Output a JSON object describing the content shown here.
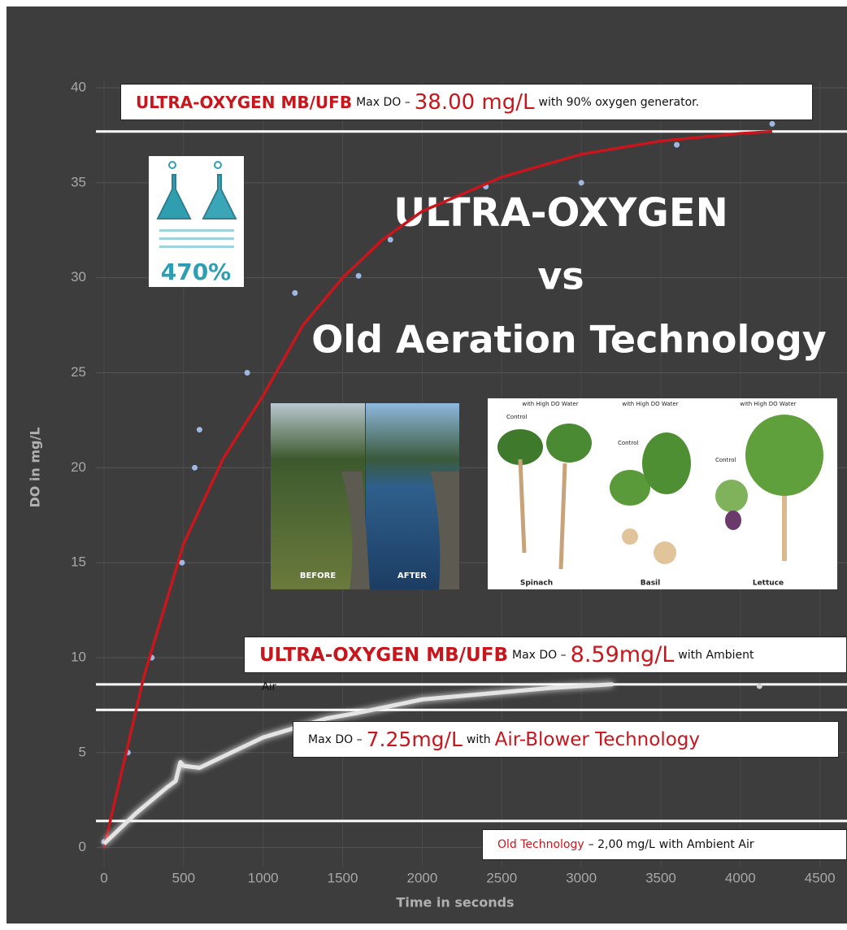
{
  "chart_data": {
    "type": "scatter",
    "xlabel": "Time in seconds",
    "ylabel": "DO in mg/L",
    "xlim": [
      0,
      4660
    ],
    "xticks": [
      0,
      500,
      1000,
      1500,
      2000,
      2500,
      3000,
      3500,
      4000,
      4500
    ],
    "ylim": [
      -1,
      40
    ],
    "yticks": [
      0,
      5,
      10,
      15,
      20,
      25,
      30,
      35,
      40
    ],
    "grid": true,
    "series": [
      {
        "type": "scatter",
        "color": "#9fb8e2",
        "x": [
          0,
          150,
          300,
          490,
          570,
          600,
          900,
          1200,
          1600,
          1800,
          2400,
          3000,
          3600,
          4200
        ],
        "values": [
          0.3,
          5,
          10,
          15,
          20,
          22,
          25,
          29.2,
          30.1,
          32,
          34.8,
          35,
          37,
          38.1
        ]
      },
      {
        "type": "line",
        "color": "#c8161d",
        "x": [
          0,
          250,
          500,
          750,
          1000,
          1250,
          1500,
          1750,
          2000,
          2500,
          3000,
          3500,
          4000,
          4200
        ],
        "values": [
          0,
          9,
          16,
          20.5,
          23.8,
          27.5,
          30,
          32,
          33.5,
          35.3,
          36.5,
          37.2,
          37.6,
          37.7
        ]
      },
      {
        "type": "line",
        "color": "#e4e4e4",
        "x": [
          0,
          100,
          200,
          300,
          400,
          450,
          480,
          500,
          600,
          800,
          1000,
          1200,
          1400,
          1600,
          2000,
          2400,
          2800,
          3200
        ],
        "values": [
          0.2,
          1,
          1.8,
          2.5,
          3.2,
          3.5,
          4.5,
          4.3,
          4.2,
          5,
          5.8,
          6.3,
          6.8,
          7.1,
          7.8,
          8.1,
          8.4,
          8.6
        ]
      },
      {
        "type": "scatter",
        "color": "#d0d0d0",
        "x": [
          4120
        ],
        "values": [
          8.5
        ]
      }
    ],
    "hlines": [
      37.7,
      8.59,
      7.25,
      1.4
    ],
    "hline_color": "#ffffff",
    "annotations": [
      {
        "segments": [
          {
            "text": "ULTRA-OXYGEN MB/UFB",
            "color": "#c8161d"
          },
          {
            "text": "Max DO –",
            "color": "#111111"
          },
          {
            "text": "38.00 mg/L",
            "color": "#c8161d"
          },
          {
            "text": "with 90% oxygen generator.",
            "color": "#111111"
          }
        ]
      },
      {
        "segments": [
          {
            "text": "ULTRA-OXYGEN MB/UFB",
            "color": "#c8161d"
          },
          {
            "text": "Max DO –",
            "color": "#111111"
          },
          {
            "text": "8.59mg/L",
            "color": "#c8161d"
          },
          {
            "text": "with Ambient",
            "color": "#111111"
          }
        ],
        "overflow": "Air"
      },
      {
        "segments": [
          {
            "text": "Max DO –",
            "color": "#111111"
          },
          {
            "text": "7.25mg/L",
            "color": "#c8161d"
          },
          {
            "text": "with",
            "color": "#111111"
          },
          {
            "text": "Air-Blower Technology",
            "color": "#c8161d"
          }
        ]
      },
      {
        "segments": [
          {
            "text": "Old Technology",
            "color": "#c8161d"
          },
          {
            "text": "– 2,00 mg/L",
            "color": "#111111"
          },
          {
            "text": "with Ambient Air",
            "color": "#111111"
          }
        ]
      }
    ],
    "headline": [
      "ULTRA-OXYGEN",
      "vs",
      "Old Aeration Technology"
    ],
    "inset": {
      "label": "470%"
    },
    "pond": {
      "before": "BEFORE",
      "after": "AFTER"
    },
    "plants": {
      "top": "with High DO Water",
      "control": "Control",
      "names": [
        "Spinach",
        "Basil",
        "Lettuce"
      ]
    }
  }
}
